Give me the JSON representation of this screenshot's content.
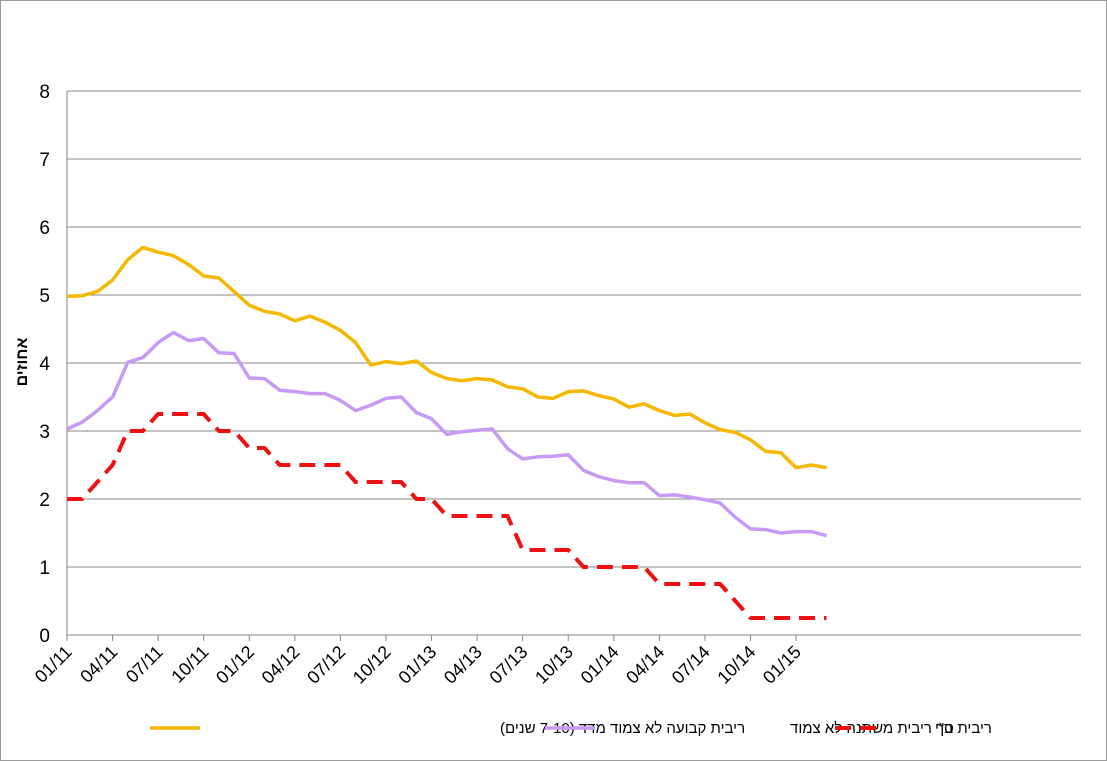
{
  "chart_data": {
    "type": "line",
    "title": "",
    "xlabel": "",
    "ylabel": "אחוזים",
    "ylim": [
      0,
      8
    ],
    "yticks": [
      "0",
      "1",
      "2",
      "3",
      "4",
      "5",
      "6",
      "7",
      "8"
    ],
    "grid": true,
    "legend_position": "bottom",
    "x_tick_labels": [
      "01/11",
      "04/11",
      "07/11",
      "10/11",
      "01/12",
      "04/12",
      "07/12",
      "10/12",
      "01/13",
      "04/13",
      "07/13",
      "10/13",
      "01/14",
      "04/14",
      "07/14",
      "10/14",
      "01/15"
    ],
    "x": [
      "01/11",
      "02/11",
      "03/11",
      "04/11",
      "05/11",
      "06/11",
      "07/11",
      "08/11",
      "09/11",
      "10/11",
      "11/11",
      "12/11",
      "01/12",
      "02/12",
      "03/12",
      "04/12",
      "05/12",
      "06/12",
      "07/12",
      "08/12",
      "09/12",
      "10/12",
      "11/12",
      "12/12",
      "01/13",
      "02/13",
      "03/13",
      "04/13",
      "05/13",
      "06/13",
      "07/13",
      "08/13",
      "09/13",
      "10/13",
      "11/13",
      "12/13",
      "01/14",
      "02/14",
      "03/14",
      "04/14",
      "05/14",
      "06/14",
      "07/14",
      "08/14",
      "09/14",
      "10/14",
      "11/14",
      "12/14",
      "01/15",
      "02/15",
      "03/15"
    ],
    "series": [
      {
        "name": "ריבית קבועה לא צמוד מדד (7-10 שנים)",
        "color": "#F5B800",
        "style": "solid",
        "values": [
          4.98,
          4.99,
          5.05,
          5.22,
          5.52,
          5.7,
          5.63,
          5.58,
          5.45,
          5.28,
          5.25,
          5.05,
          4.85,
          4.76,
          4.72,
          4.62,
          4.69,
          4.6,
          4.48,
          4.3,
          3.97,
          4.02,
          3.99,
          4.03,
          3.86,
          3.77,
          3.74,
          3.77,
          3.75,
          3.65,
          3.62,
          3.5,
          3.48,
          3.58,
          3.59,
          3.52,
          3.47,
          3.35,
          3.4,
          3.3,
          3.23,
          3.25,
          3.12,
          3.02,
          2.98,
          2.87,
          2.7,
          2.68,
          2.46,
          2.5,
          2.46
        ]
      },
      {
        "name": "סך ריבית משתנה לא צמוד",
        "color": "#C79AF5",
        "style": "solid",
        "values": [
          3.03,
          3.13,
          3.3,
          3.5,
          4.01,
          4.08,
          4.3,
          4.45,
          4.33,
          4.36,
          4.15,
          4.14,
          3.78,
          3.77,
          3.6,
          3.58,
          3.55,
          3.55,
          3.45,
          3.3,
          3.38,
          3.48,
          3.5,
          3.27,
          3.18,
          2.95,
          2.99,
          3.01,
          3.03,
          2.74,
          2.59,
          2.62,
          2.63,
          2.65,
          2.42,
          2.33,
          2.27,
          2.24,
          2.24,
          2.05,
          2.06,
          2.03,
          1.99,
          1.94,
          1.73,
          1.56,
          1.55,
          1.5,
          1.52,
          1.52,
          1.46
        ]
      },
      {
        "name": "ריבית ב\"י",
        "color": "#EE1111",
        "style": "dashed",
        "values": [
          2.0,
          2.0,
          2.25,
          2.5,
          3.0,
          3.0,
          3.25,
          3.25,
          3.25,
          3.25,
          3.0,
          3.0,
          2.75,
          2.75,
          2.5,
          2.5,
          2.5,
          2.5,
          2.5,
          2.25,
          2.25,
          2.25,
          2.25,
          2.0,
          2.0,
          1.75,
          1.75,
          1.75,
          1.75,
          1.75,
          1.25,
          1.25,
          1.25,
          1.25,
          1.0,
          1.0,
          1.0,
          1.0,
          1.0,
          0.75,
          0.75,
          0.75,
          0.75,
          0.75,
          0.5,
          0.25,
          0.25,
          0.25,
          0.25,
          0.25,
          0.25
        ]
      }
    ]
  }
}
